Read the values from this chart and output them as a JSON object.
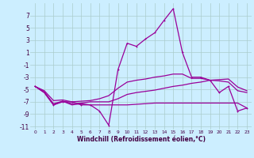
{
  "xlabel": "Windchill (Refroidissement éolien,°C)",
  "background_color": "#cceeff",
  "grid_color": "#aacccc",
  "line_color": "#990099",
  "x_hours": [
    0,
    1,
    2,
    3,
    4,
    5,
    6,
    7,
    8,
    9,
    10,
    11,
    12,
    13,
    14,
    15,
    16,
    17,
    18,
    19,
    20,
    21,
    22,
    23
  ],
  "y_main": [
    -4.5,
    -5.5,
    -7.5,
    -7.0,
    -7.0,
    -7.5,
    -7.5,
    -8.5,
    -10.8,
    -1.8,
    2.5,
    2.0,
    3.2,
    4.2,
    6.2,
    8.1,
    1.0,
    -3.0,
    -3.0,
    -3.5,
    -5.5,
    -4.5,
    -8.5,
    -8.0
  ],
  "y_line2": [
    -4.5,
    -5.5,
    -7.5,
    -6.9,
    -7.5,
    -7.3,
    -7.5,
    -7.5,
    -7.5,
    -7.5,
    -7.5,
    -7.4,
    -7.3,
    -7.2,
    -7.2,
    -7.2,
    -7.2,
    -7.2,
    -7.2,
    -7.2,
    -7.2,
    -7.2,
    -7.2,
    -8.0
  ],
  "y_line3": [
    -4.5,
    -5.4,
    -7.3,
    -6.9,
    -7.3,
    -7.2,
    -7.0,
    -7.0,
    -7.0,
    -6.5,
    -5.8,
    -5.5,
    -5.3,
    -5.1,
    -4.8,
    -4.5,
    -4.3,
    -4.0,
    -3.8,
    -3.5,
    -3.4,
    -3.3,
    -4.6,
    -5.2
  ],
  "y_line4": [
    -4.5,
    -5.2,
    -6.8,
    -6.7,
    -7.0,
    -6.9,
    -6.8,
    -6.5,
    -6.0,
    -4.8,
    -3.8,
    -3.5,
    -3.3,
    -3.0,
    -2.8,
    -2.5,
    -2.5,
    -3.2,
    -3.2,
    -3.5,
    -3.6,
    -3.8,
    -5.2,
    -5.5
  ],
  "ylim": [
    -11.5,
    9.0
  ],
  "xlim": [
    -0.5,
    23.5
  ],
  "yticks": [
    7,
    5,
    3,
    1,
    -1,
    -3,
    -5,
    -7,
    -9,
    -11
  ],
  "xticks": [
    0,
    1,
    2,
    3,
    4,
    5,
    6,
    7,
    8,
    9,
    10,
    11,
    12,
    13,
    14,
    15,
    16,
    17,
    18,
    19,
    20,
    21,
    22,
    23
  ],
  "xlabel_fontsize": 5.5,
  "tick_fontsize_x": 4.2,
  "tick_fontsize_y": 5.5,
  "lw": 0.9,
  "marker_size": 2.0
}
